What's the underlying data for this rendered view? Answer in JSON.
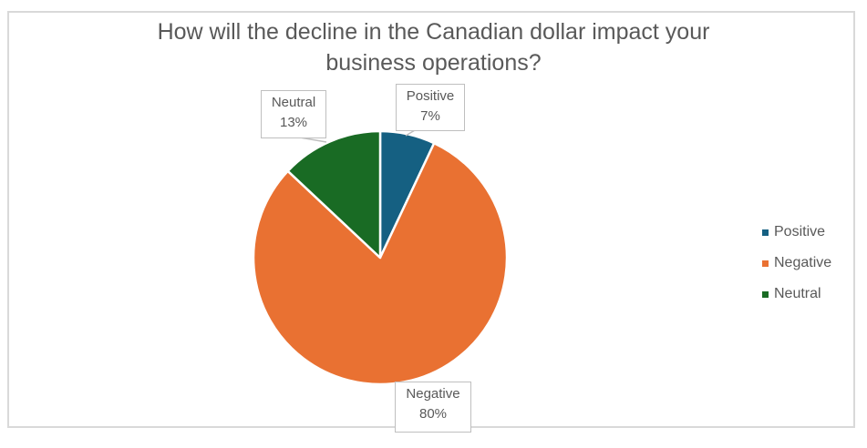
{
  "chart_data": {
    "type": "pie",
    "title": "How will the decline in the Canadian dollar impact your business operations?",
    "title_lines": [
      "How will the decline in the Canadian dollar impact your",
      "business operations?"
    ],
    "categories": [
      "Positive",
      "Negative",
      "Neutral"
    ],
    "values": [
      7,
      80,
      13
    ],
    "unit": "%",
    "colors": [
      "#156082",
      "#E97132",
      "#196B24"
    ],
    "data_labels": [
      {
        "name": "Positive",
        "value": "7%"
      },
      {
        "name": "Negative",
        "value": "80%"
      },
      {
        "name": "Neutral",
        "value": "13%"
      }
    ],
    "legend": {
      "position": "right",
      "entries": [
        "Positive",
        "Negative",
        "Neutral"
      ]
    }
  }
}
